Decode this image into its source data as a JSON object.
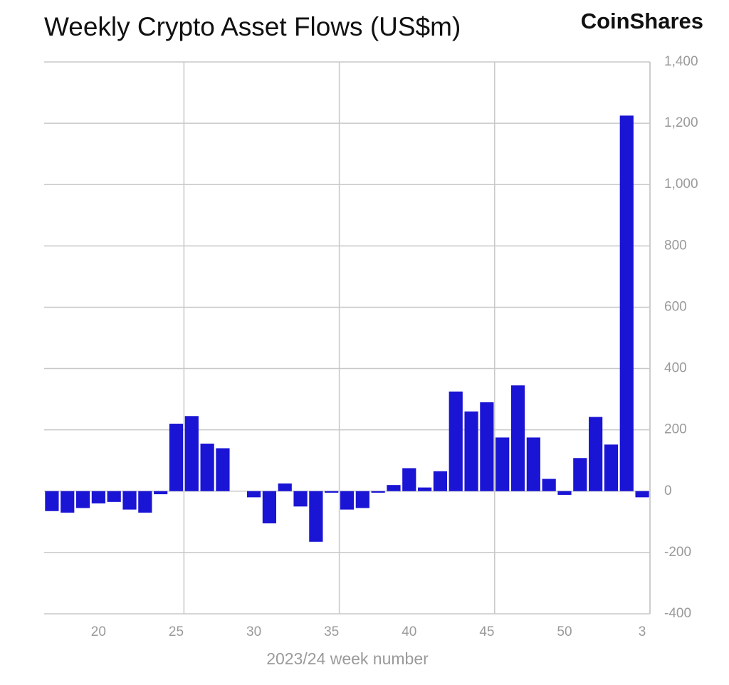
{
  "chart_data": {
    "type": "bar",
    "title": "Weekly Crypto Asset Flows (US$m)",
    "brand": "CoinShares",
    "x_label": "2023/24 week number",
    "categories": [
      null,
      null,
      null,
      "20",
      null,
      null,
      null,
      null,
      "25",
      null,
      null,
      null,
      null,
      "30",
      null,
      null,
      null,
      null,
      "35",
      null,
      null,
      null,
      null,
      "40",
      null,
      null,
      null,
      null,
      "45",
      null,
      null,
      null,
      null,
      "50",
      null,
      null,
      null,
      null,
      "3"
    ],
    "values": [
      -65,
      -70,
      -55,
      -40,
      -35,
      -60,
      -70,
      -10,
      220,
      245,
      155,
      140,
      0,
      -20,
      -105,
      25,
      -50,
      -165,
      -5,
      -60,
      -55,
      -5,
      20,
      75,
      12,
      65,
      325,
      260,
      290,
      175,
      345,
      175,
      40,
      -12,
      108,
      242,
      152,
      1225,
      -20
    ],
    "color": "#1a14d4",
    "ylim": [
      -400,
      1400
    ],
    "yticks": [
      -400,
      -200,
      0,
      200,
      400,
      600,
      800,
      {
        "value": 1000,
        "label": "1,000"
      },
      {
        "value": 1200,
        "label": "1,200"
      },
      {
        "value": 1400,
        "label": "1,400"
      }
    ],
    "grid": true
  }
}
